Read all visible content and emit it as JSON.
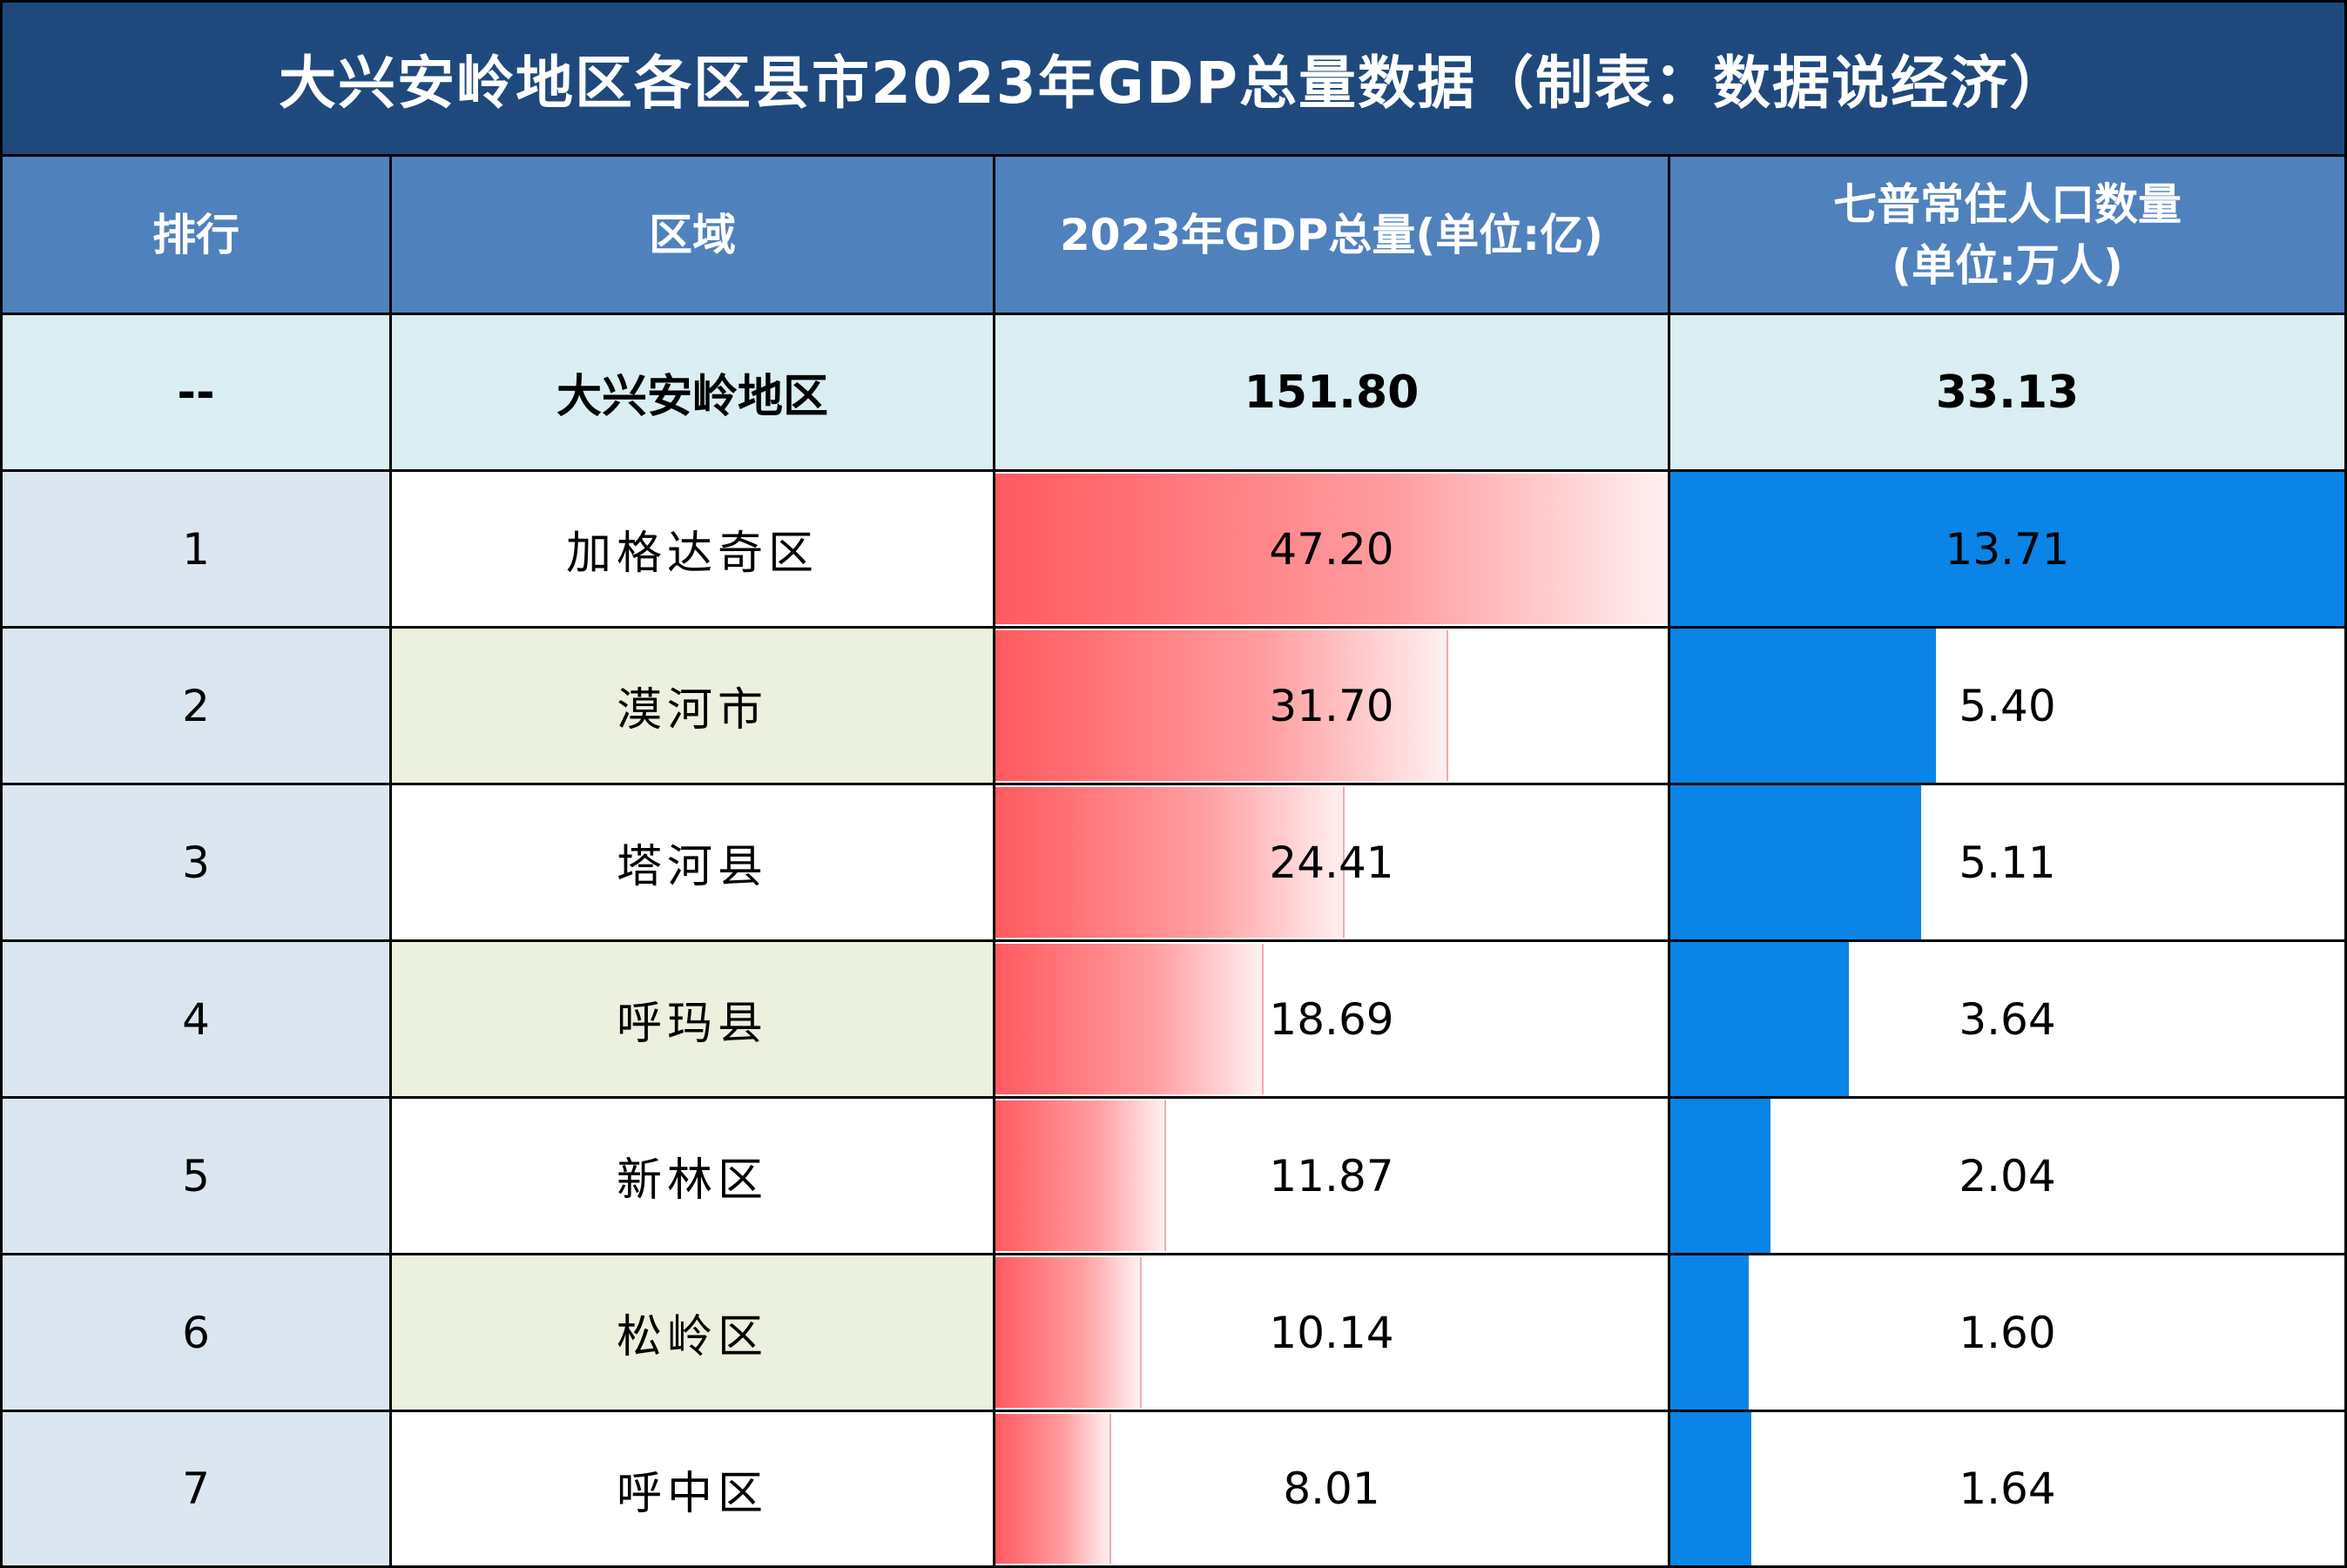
{
  "title": "大兴安岭地区各区县市2023年GDP总量数据（制表：数据说经济）",
  "headers": {
    "rank": "排行",
    "region": "区域",
    "gdp_line1": "2023年GDP总量(单位:亿)",
    "pop_line1": "七普常住人口数量",
    "pop_line2": "(单位:万人)"
  },
  "summary": {
    "rank": "--",
    "region": "大兴安岭地区",
    "gdp": "151.80",
    "pop": "33.13"
  },
  "colors": {
    "title_bg": "#1f497d",
    "header_bg": "#4f81bd",
    "summary_bg": "#daeef3",
    "rank_bg": "#dce6f1",
    "region_alt_bg": "#ebf1de",
    "gdp_bar": "#ff5a5f",
    "pop_bar": "#0a84e6"
  },
  "chart_data": {
    "type": "table",
    "columns": [
      "排行",
      "区域",
      "2023年GDP总量(单位:亿)",
      "七普常住人口数量(单位:万人)"
    ],
    "rows": [
      {
        "rank": "1",
        "region": "加格达奇区",
        "gdp": 47.2,
        "gdp_label": "47.20",
        "pop": 13.71,
        "pop_label": "13.71"
      },
      {
        "rank": "2",
        "region": "漠河市",
        "gdp": 31.7,
        "gdp_label": "31.70",
        "pop": 5.4,
        "pop_label": "5.40"
      },
      {
        "rank": "3",
        "region": "塔河县",
        "gdp": 24.41,
        "gdp_label": "24.41",
        "pop": 5.11,
        "pop_label": "5.11"
      },
      {
        "rank": "4",
        "region": "呼玛县",
        "gdp": 18.69,
        "gdp_label": "18.69",
        "pop": 3.64,
        "pop_label": "3.64"
      },
      {
        "rank": "5",
        "region": "新林区",
        "gdp": 11.87,
        "gdp_label": "11.87",
        "pop": 2.04,
        "pop_label": "2.04"
      },
      {
        "rank": "6",
        "region": "松岭区",
        "gdp": 10.14,
        "gdp_label": "10.14",
        "pop": 1.6,
        "pop_label": "1.60"
      },
      {
        "rank": "7",
        "region": "呼中区",
        "gdp": 8.01,
        "gdp_label": "8.01",
        "pop": 1.64,
        "pop_label": "1.64"
      }
    ],
    "gdp_max": 47.2,
    "pop_max": 13.71
  }
}
